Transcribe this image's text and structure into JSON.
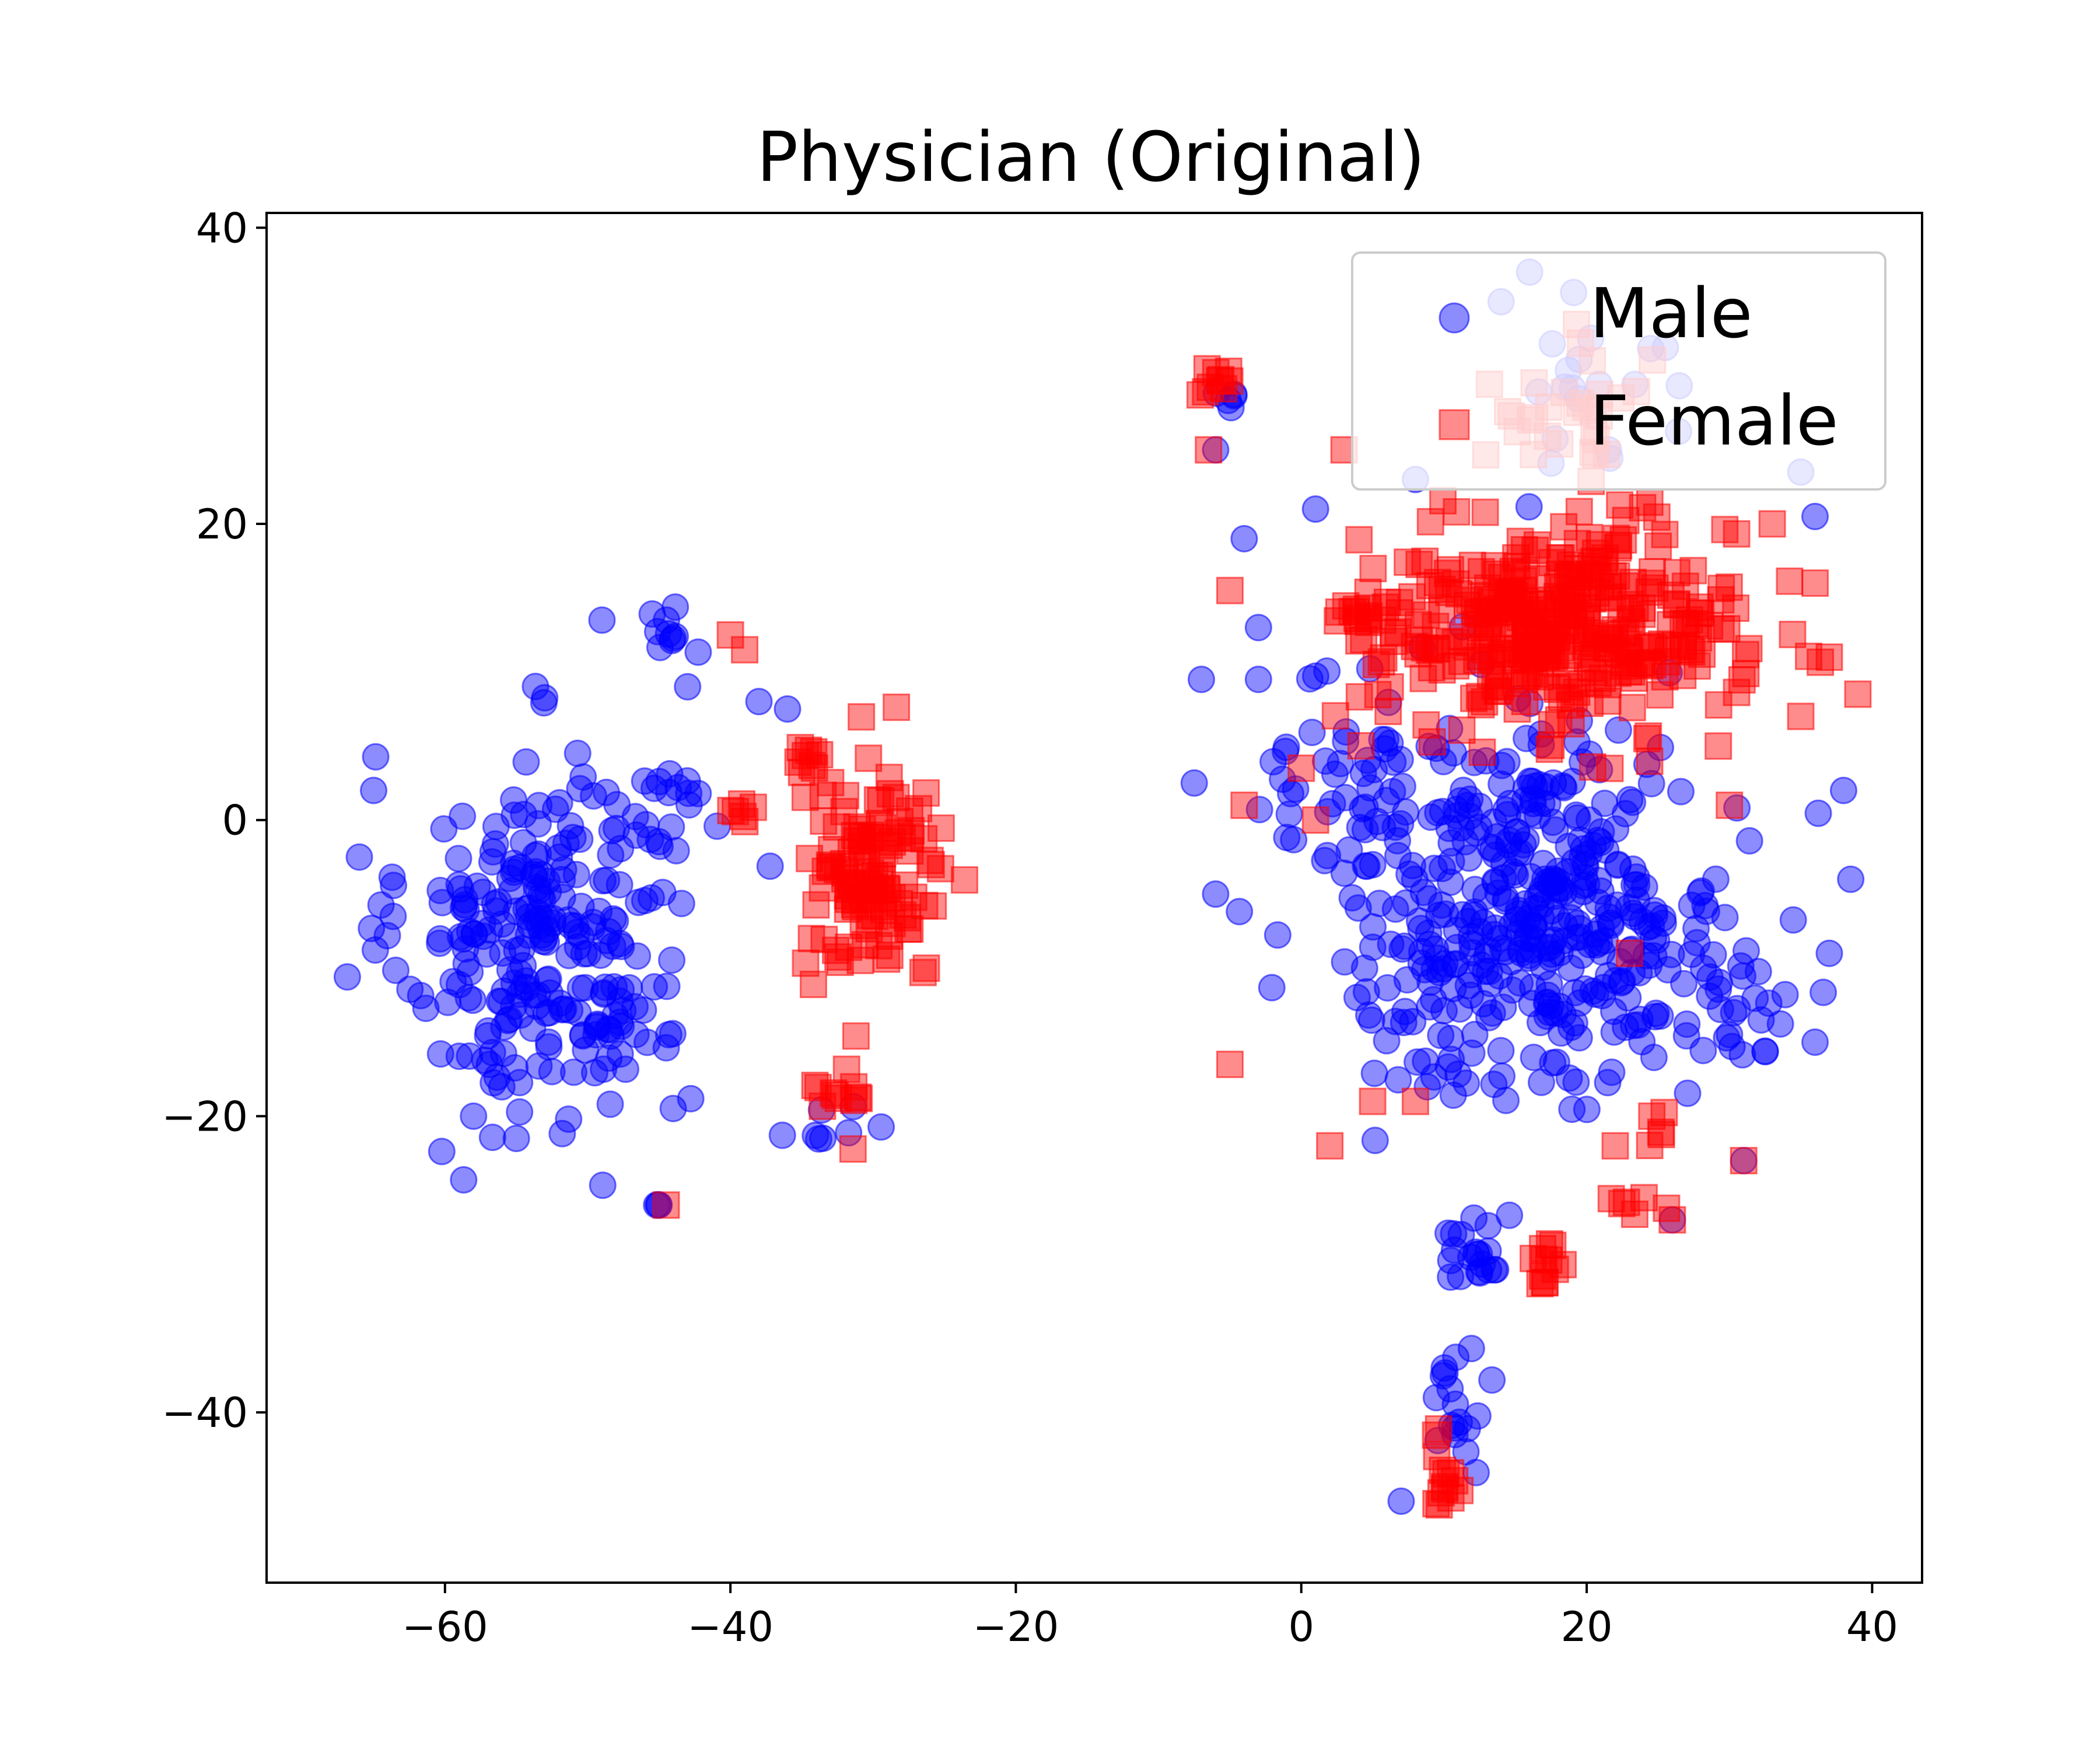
{
  "chart_data": {
    "type": "scatter",
    "title": "Physician (Original)",
    "xlabel": "",
    "ylabel": "",
    "xlim": [
      -72.5,
      43.5
    ],
    "ylim": [
      -51.5,
      41
    ],
    "xticks": [
      -60,
      -40,
      -20,
      0,
      20,
      40
    ],
    "yticks": [
      -40,
      -20,
      0,
      20,
      40
    ],
    "xtick_labels": [
      "−60",
      "−40",
      "−20",
      "0",
      "20",
      "40"
    ],
    "ytick_labels": [
      "−40",
      "−20",
      "0",
      "20",
      "40"
    ],
    "legend_position": "top-right",
    "grid": false,
    "series": [
      {
        "name": "Male",
        "marker": "circle",
        "color": "#0000ff",
        "alpha": 0.45,
        "clusters": [
          {
            "center": [
              -53,
              -8
            ],
            "spread": [
              7,
              9
            ],
            "count": 260
          },
          {
            "center": [
              -44,
              13
            ],
            "spread": [
              1.5,
              1.5
            ],
            "count": 10
          },
          {
            "center": [
              -44,
              1
            ],
            "spread": [
              2,
              2
            ],
            "count": 12
          },
          {
            "center": [
              -33,
              -21
            ],
            "spread": [
              2,
              1.2
            ],
            "count": 8
          },
          {
            "center": [
              -45,
              -26
            ],
            "spread": [
              0.2,
              0.2
            ],
            "count": 2
          },
          {
            "center": [
              16,
              -6
            ],
            "spread": [
              10,
              9
            ],
            "count": 430
          },
          {
            "center": [
              3,
              4
            ],
            "spread": [
              3,
              5
            ],
            "count": 30
          },
          {
            "center": [
              12,
              -29
            ],
            "spread": [
              2,
              2
            ],
            "count": 20
          },
          {
            "center": [
              11,
              -40
            ],
            "spread": [
              1.5,
              3
            ],
            "count": 18
          },
          {
            "center": [
              -5,
              29
            ],
            "spread": [
              1,
              1
            ],
            "count": 5
          },
          {
            "center": [
              30,
              -12
            ],
            "spread": [
              3,
              3
            ],
            "count": 25
          },
          {
            "center": [
              20,
              29
            ],
            "spread": [
              6,
              4
            ],
            "count": 20
          }
        ],
        "points": [
          [
            -45,
            -26
          ],
          [
            -6,
            25
          ],
          [
            -7,
            9.5
          ],
          [
            -7.5,
            2.5
          ],
          [
            -6,
            -5
          ],
          [
            -4,
            19
          ],
          [
            -3,
            13
          ],
          [
            1,
            21
          ],
          [
            -3,
            9.5
          ],
          [
            36,
            20.5
          ],
          [
            38,
            2
          ],
          [
            38.5,
            -4
          ],
          [
            37,
            -9
          ],
          [
            36,
            -15
          ],
          [
            7,
            -46
          ],
          [
            26,
            -27
          ],
          [
            31,
            -23
          ],
          [
            16,
            37
          ],
          [
            14,
            35
          ],
          [
            8,
            23
          ],
          [
            35,
            23.5
          ],
          [
            -38,
            8
          ],
          [
            -36,
            7.5
          ],
          [
            -43,
            9
          ],
          [
            -49,
            13.5
          ],
          [
            -66,
            -2.5
          ],
          [
            -58,
            -20
          ],
          [
            -55,
            -21.5
          ],
          [
            -65,
            2
          ]
        ]
      },
      {
        "name": "Female",
        "marker": "square",
        "color": "#ff0000",
        "alpha": 0.45,
        "clusters": [
          {
            "center": [
              18,
              13
            ],
            "spread": [
              9,
              5
            ],
            "count": 360
          },
          {
            "center": [
              20,
              28
            ],
            "spread": [
              5,
              3
            ],
            "count": 30
          },
          {
            "center": [
              4,
              14
            ],
            "spread": [
              2,
              1
            ],
            "count": 15
          },
          {
            "center": [
              -30,
              -4
            ],
            "spread": [
              3.5,
              5
            ],
            "count": 120
          },
          {
            "center": [
              -35,
              4
            ],
            "spread": [
              1,
              1
            ],
            "count": 8
          },
          {
            "center": [
              -39,
              1
            ],
            "spread": [
              1,
              1
            ],
            "count": 6
          },
          {
            "center": [
              -32,
              -19
            ],
            "spread": [
              1.5,
              1.5
            ],
            "count": 12
          },
          {
            "center": [
              -6,
              29.5
            ],
            "spread": [
              0.8,
              0.8
            ],
            "count": 10
          },
          {
            "center": [
              17,
              -30
            ],
            "spread": [
              1.5,
              1.2
            ],
            "count": 12
          },
          {
            "center": [
              10,
              -44
            ],
            "spread": [
              0.8,
              2.5
            ],
            "count": 14
          },
          {
            "center": [
              23,
              -26
            ],
            "spread": [
              1.5,
              0.8
            ],
            "count": 6
          },
          {
            "center": [
              25,
              -20.5
            ],
            "spread": [
              0.6,
              1
            ],
            "count": 5
          }
        ],
        "points": [
          [
            -44.5,
            -26
          ],
          [
            -40,
            12.5
          ],
          [
            -39,
            11.5
          ],
          [
            -6.5,
            25
          ],
          [
            -5,
            15.5
          ],
          [
            -5,
            -16.5
          ],
          [
            -4,
            1
          ],
          [
            0,
            3.5
          ],
          [
            1,
            0
          ],
          [
            2,
            -22
          ],
          [
            5,
            -19
          ],
          [
            8,
            -19
          ],
          [
            22,
            -22
          ],
          [
            23,
            -9
          ],
          [
            31,
            -23
          ],
          [
            26,
            -27
          ],
          [
            30,
            1
          ],
          [
            3,
            25
          ],
          [
            35,
            7
          ],
          [
            37,
            11
          ],
          [
            36,
            16
          ],
          [
            33,
            20
          ],
          [
            39,
            8.5
          ]
        ]
      }
    ]
  }
}
